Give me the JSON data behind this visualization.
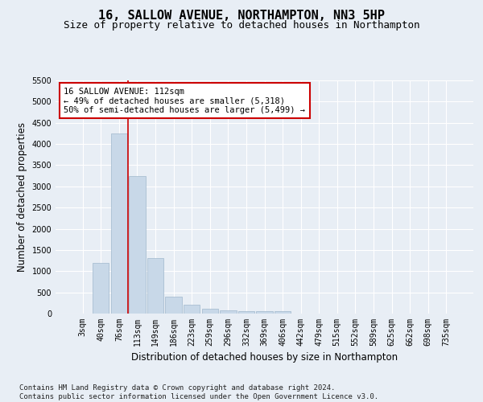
{
  "title_line1": "16, SALLOW AVENUE, NORTHAMPTON, NN3 5HP",
  "title_line2": "Size of property relative to detached houses in Northampton",
  "xlabel": "Distribution of detached houses by size in Northampton",
  "ylabel": "Number of detached properties",
  "footnote": "Contains HM Land Registry data © Crown copyright and database right 2024.\nContains public sector information licensed under the Open Government Licence v3.0.",
  "categories": [
    "3sqm",
    "40sqm",
    "76sqm",
    "113sqm",
    "149sqm",
    "186sqm",
    "223sqm",
    "259sqm",
    "296sqm",
    "332sqm",
    "369sqm",
    "406sqm",
    "442sqm",
    "479sqm",
    "515sqm",
    "552sqm",
    "589sqm",
    "625sqm",
    "662sqm",
    "698sqm",
    "735sqm"
  ],
  "values": [
    0,
    1200,
    4250,
    3250,
    1300,
    400,
    200,
    105,
    80,
    65,
    65,
    65,
    0,
    0,
    0,
    0,
    0,
    0,
    0,
    0,
    0
  ],
  "bar_color": "#c8d8e8",
  "bar_edge_color": "#a0b8cc",
  "vline_color": "#cc0000",
  "annotation_box_text": "16 SALLOW AVENUE: 112sqm\n← 49% of detached houses are smaller (5,318)\n50% of semi-detached houses are larger (5,499) →",
  "ylim": [
    0,
    5500
  ],
  "yticks": [
    0,
    500,
    1000,
    1500,
    2000,
    2500,
    3000,
    3500,
    4000,
    4500,
    5000,
    5500
  ],
  "bg_color": "#e8eef5",
  "plot_bg_color": "#e8eef5",
  "grid_color": "#ffffff",
  "title_fontsize": 11,
  "subtitle_fontsize": 9,
  "tick_fontsize": 7,
  "axis_label_fontsize": 8.5,
  "footnote_fontsize": 6.5
}
